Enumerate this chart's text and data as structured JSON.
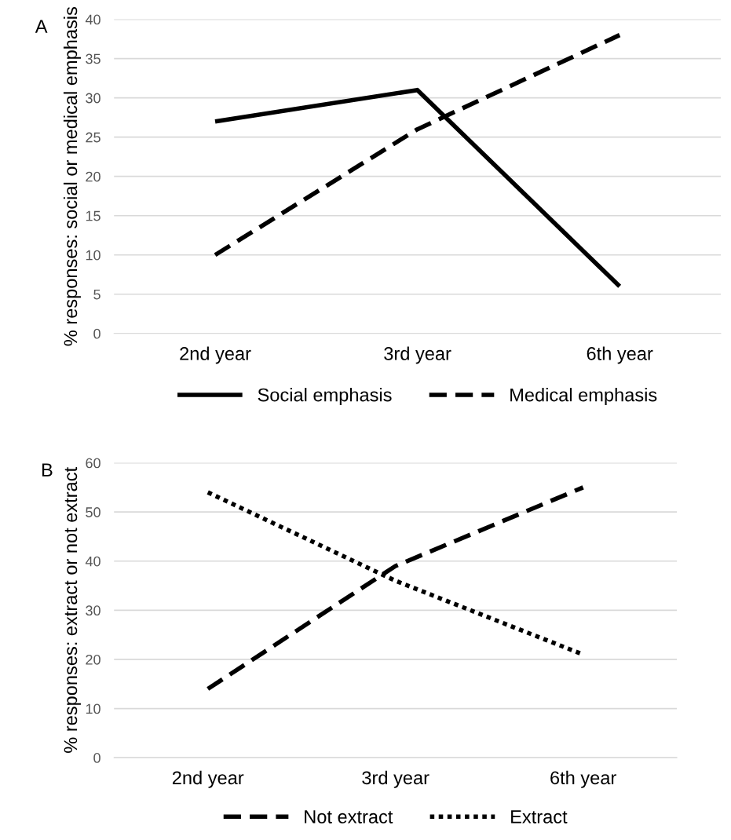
{
  "chart_data": [
    {
      "type": "line",
      "annotations": [
        "A"
      ],
      "ylabel": "% responses: social or medical emphasis",
      "categories": [
        "2nd year",
        "3rd year",
        "6th year"
      ],
      "series": [
        {
          "name": "Social emphasis",
          "color": "#000000",
          "line_style": "solid",
          "values": [
            27,
            31,
            6
          ]
        },
        {
          "name": "Medical emphasis",
          "color": "#000000",
          "line_style": "dashed",
          "values": [
            10,
            26,
            38
          ]
        }
      ],
      "ylim": [
        0,
        40
      ],
      "yticks": [
        0,
        5,
        10,
        15,
        20,
        25,
        30,
        35,
        40
      ],
      "grid": "y",
      "legend": "bottom",
      "marker": "none"
    },
    {
      "type": "line",
      "annotations": [
        "B"
      ],
      "ylabel": "% responses: extract or not extract",
      "categories": [
        "2nd year",
        "3rd year",
        "6th year"
      ],
      "series": [
        {
          "name": "Not extract",
          "color": "#000000",
          "line_style": "dashed",
          "values": [
            14,
            39,
            55
          ]
        },
        {
          "name": "Extract",
          "color": "#000000",
          "line_style": "dotted",
          "values": [
            54,
            36,
            21
          ]
        }
      ],
      "ylim": [
        0,
        60
      ],
      "yticks": [
        0,
        10,
        20,
        30,
        40,
        50,
        60
      ],
      "grid": "y",
      "legend": "bottom",
      "marker": "none"
    }
  ]
}
